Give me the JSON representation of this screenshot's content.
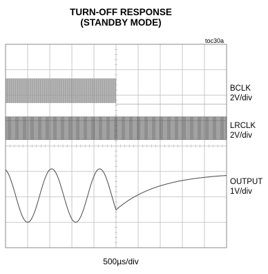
{
  "chart_data": {
    "type": "line",
    "title": "TURN-OFF RESPONSE",
    "subtitle": "(STANDBY MODE)",
    "figure_code": "toc30a",
    "xlabel": "500µs/div",
    "x_divisions": 10,
    "y_divisions": 8,
    "grid": true,
    "turn_off_division": 5,
    "series": [
      {
        "name": "BCLK",
        "scale": "2V/div",
        "description": "clock toggling until turn-off, then flat low"
      },
      {
        "name": "LRCLK",
        "scale": "2V/div",
        "description": "clock toggling continuously"
      },
      {
        "name": "OUTPUT",
        "scale": "1V/div",
        "cycles_before_turn_off": 2,
        "description": "sine wave, then exponential recovery after turn-off"
      }
    ]
  },
  "colors": {
    "grid": "#bdbdbd",
    "frame": "#8a8a8a",
    "trace": "#555555"
  }
}
